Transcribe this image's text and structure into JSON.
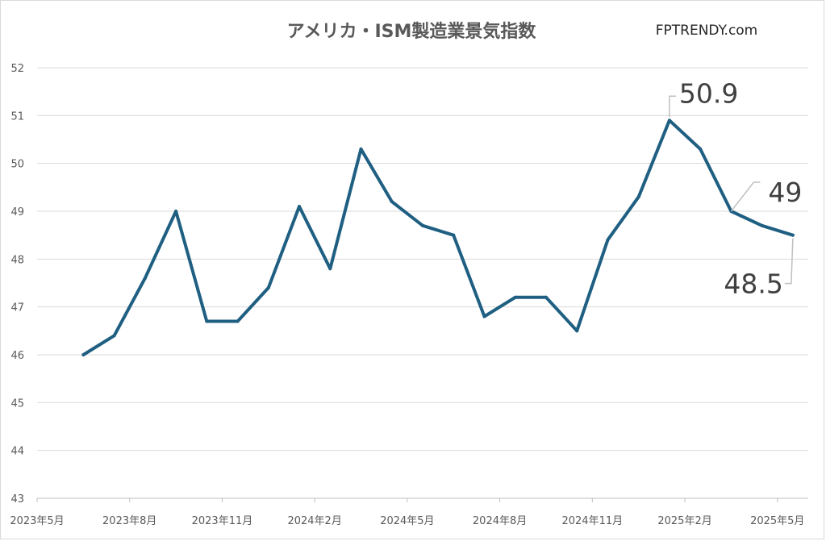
{
  "chart_data": {
    "type": "line",
    "title": "アメリカ・ISM製造業景気指数",
    "watermark": "FPTRENDY.com",
    "ylim": [
      43,
      52
    ],
    "yticks": [
      43,
      44,
      45,
      46,
      47,
      48,
      49,
      50,
      51,
      52
    ],
    "xtick_labels": [
      "2023年5月",
      "2023年8月",
      "2023年11月",
      "2024年2月",
      "2024年5月",
      "2024年8月",
      "2024年11月",
      "2025年2月",
      "2025年5月"
    ],
    "x": [
      "2023年6月",
      "2023年7月",
      "2023年8月",
      "2023年9月",
      "2023年10月",
      "2023年11月",
      "2023年12月",
      "2024年1月",
      "2024年2月",
      "2024年3月",
      "2024年4月",
      "2024年5月",
      "2024年6月",
      "2024年7月",
      "2024年8月",
      "2024年9月",
      "2024年10月",
      "2024年11月",
      "2024年12月",
      "2025年1月",
      "2025年2月",
      "2025年3月",
      "2025年4月",
      "2025年5月"
    ],
    "series": [
      {
        "color": "#1f5f82",
        "values": [
          46.0,
          46.4,
          47.6,
          49.0,
          46.7,
          46.7,
          47.4,
          49.1,
          47.8,
          50.3,
          49.2,
          48.7,
          48.5,
          46.8,
          47.2,
          47.2,
          46.5,
          48.4,
          49.3,
          50.9,
          50.3,
          49.0,
          48.7,
          48.5
        ]
      }
    ],
    "annotations": [
      {
        "index": 19,
        "label": "50.9"
      },
      {
        "index": 21,
        "label": "49"
      },
      {
        "index": 23,
        "label": "48.5"
      }
    ],
    "grid": true
  }
}
